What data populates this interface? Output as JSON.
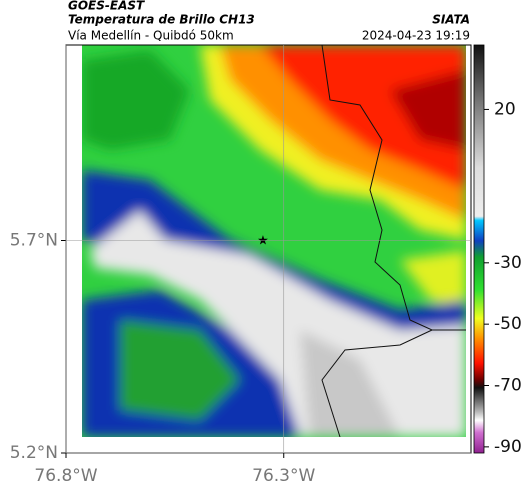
{
  "header": {
    "title": "GOES-EAST",
    "subtitle": "Temperatura de Brillo CH13",
    "route": "Vía Medellín - Quibdó 50km",
    "source": "SIATA",
    "timestamp": "2024-04-23 19:19"
  },
  "map": {
    "lat_lim": [
      5.2,
      6.16
    ],
    "lon_lim": [
      -76.8,
      -75.87
    ],
    "lat_ticks": [
      {
        "value": 5.7,
        "label": "5.7°N"
      },
      {
        "value": 5.2,
        "label": "5.2°N"
      }
    ],
    "lon_ticks": [
      {
        "value": -76.8,
        "label": "76.8°W"
      },
      {
        "value": -76.3,
        "label": "76.3°W"
      }
    ]
  },
  "colorbar": {
    "clim": [
      -92,
      41
    ],
    "ticks": [
      20,
      -30,
      -50,
      -70,
      -90
    ]
  }
}
